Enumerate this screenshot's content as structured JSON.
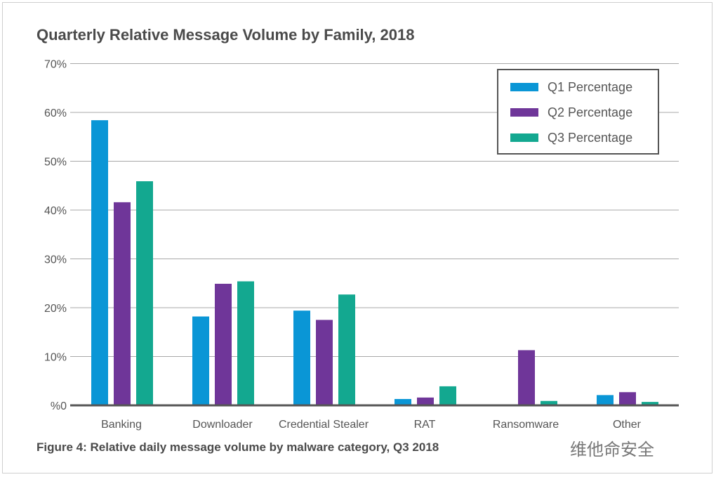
{
  "chart_data": {
    "type": "bar",
    "title": "Quarterly Relative Message Volume by Family, 2018",
    "caption": "Figure 4: Relative daily message volume by malware category, Q3 2018",
    "categories": [
      "Banking",
      "Downloader",
      "Credential Stealer",
      "RAT",
      "Ransomware",
      "Other"
    ],
    "series": [
      {
        "name": "Q1 Percentage",
        "color": "#0a96d6",
        "values": [
          58.4,
          18.2,
          19.4,
          1.3,
          0,
          2.1
        ]
      },
      {
        "name": "Q2 Percentage",
        "color": "#6f3699",
        "values": [
          41.6,
          24.9,
          17.5,
          1.6,
          11.3,
          2.7
        ]
      },
      {
        "name": "Q3 Percentage",
        "color": "#13a890",
        "values": [
          45.9,
          25.4,
          22.7,
          3.9,
          0.9,
          0.7
        ]
      }
    ],
    "yticks": [
      "%0",
      "10%",
      "20%",
      "30%",
      "40%",
      "50%",
      "60%",
      "70%"
    ],
    "ylim": [
      0,
      70
    ],
    "xlabel": "",
    "ylabel": "",
    "grid": true,
    "legend": "top-right"
  },
  "watermark": "维他命安全"
}
